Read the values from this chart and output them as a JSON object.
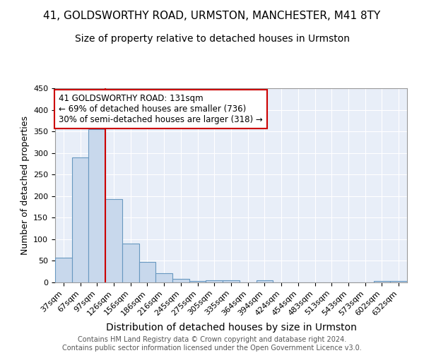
{
  "title1": "41, GOLDSWORTHY ROAD, URMSTON, MANCHESTER, M41 8TY",
  "title2": "Size of property relative to detached houses in Urmston",
  "xlabel": "Distribution of detached houses by size in Urmston",
  "ylabel": "Number of detached properties",
  "footnote": "Contains HM Land Registry data © Crown copyright and database right 2024.\nContains public sector information licensed under the Open Government Licence v3.0.",
  "categories": [
    "37sqm",
    "67sqm",
    "97sqm",
    "126sqm",
    "156sqm",
    "186sqm",
    "216sqm",
    "245sqm",
    "275sqm",
    "305sqm",
    "335sqm",
    "364sqm",
    "394sqm",
    "424sqm",
    "454sqm",
    "483sqm",
    "513sqm",
    "543sqm",
    "573sqm",
    "602sqm",
    "632sqm"
  ],
  "values": [
    58,
    290,
    355,
    193,
    90,
    47,
    21,
    9,
    4,
    5,
    5,
    0,
    5,
    0,
    0,
    0,
    0,
    0,
    0,
    4,
    4
  ],
  "bar_color": "#c8d8ec",
  "bar_edge_color": "#6898c0",
  "vline_x": 2.5,
  "vline_color": "#cc0000",
  "annotation_text": "41 GOLDSWORTHY ROAD: 131sqm\n← 69% of detached houses are smaller (736)\n30% of semi-detached houses are larger (318) →",
  "annotation_box_color": "white",
  "annotation_box_edge_color": "#cc0000",
  "ylim": [
    0,
    450
  ],
  "background_color": "#ffffff",
  "plot_bg_color": "#e8eef8",
  "grid_color": "#ffffff",
  "title1_fontsize": 11,
  "title2_fontsize": 10,
  "xlabel_fontsize": 10,
  "ylabel_fontsize": 9,
  "tick_fontsize": 8,
  "annotation_fontsize": 8.5,
  "footnote_fontsize": 7
}
